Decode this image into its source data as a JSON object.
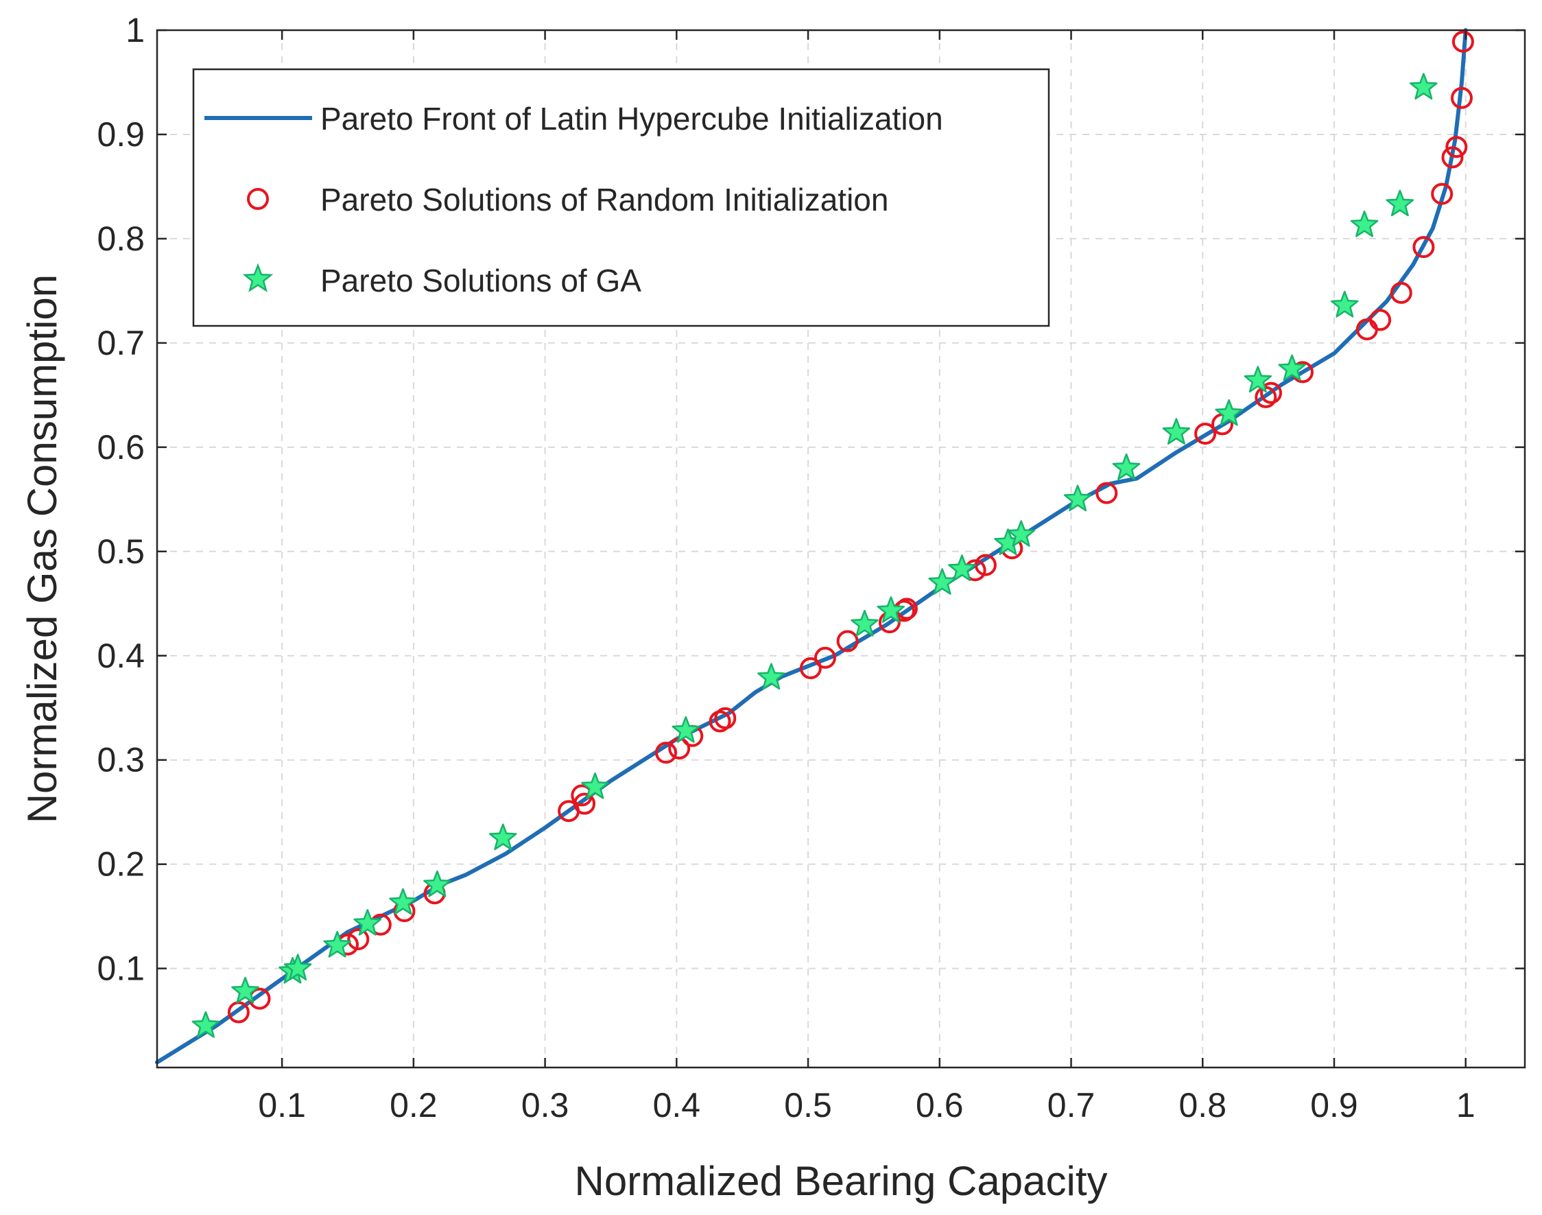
{
  "chart_data": {
    "type": "line",
    "title": "",
    "xlabel": "Normalized Bearing Capacity",
    "ylabel": "Normalized Gas Consumption",
    "xlim": [
      0.005,
      1.045
    ],
    "ylim": [
      0.005,
      1.0
    ],
    "xticks": [
      0.1,
      0.2,
      0.3,
      0.4,
      0.5,
      0.6,
      0.7,
      0.8,
      0.9,
      1.0
    ],
    "yticks": [
      0.1,
      0.2,
      0.3,
      0.4,
      0.5,
      0.6,
      0.7,
      0.8,
      0.9,
      1.0
    ],
    "xtick_labels": [
      "0.1",
      "0.2",
      "0.3",
      "0.4",
      "0.5",
      "0.6",
      "0.7",
      "0.8",
      "0.9",
      "1"
    ],
    "ytick_labels": [
      "0.1",
      "0.2",
      "0.3",
      "0.4",
      "0.5",
      "0.6",
      "0.7",
      "0.8",
      "0.9",
      "1"
    ],
    "grid": true,
    "legend_position": "top-left",
    "colors": {
      "front": "#1f6db5",
      "random": "#e8141e",
      "ga_fill": "#3cf08c",
      "ga_edge": "#17b36a",
      "axis": "#262626",
      "grid": "#d9d9d9"
    },
    "series": [
      {
        "name": "Pareto Front of Latin Hypercube Initialization",
        "marker": "line",
        "x": [
          0.005,
          0.05,
          0.1,
          0.15,
          0.2,
          0.22,
          0.24,
          0.27,
          0.3,
          0.35,
          0.4,
          0.44,
          0.46,
          0.48,
          0.52,
          0.56,
          0.6,
          0.65,
          0.7,
          0.73,
          0.75,
          0.78,
          0.82,
          0.86,
          0.88,
          0.9,
          0.92,
          0.94,
          0.96,
          0.975,
          0.985,
          0.992,
          0.997,
          1.0
        ],
        "y": [
          0.01,
          0.045,
          0.09,
          0.135,
          0.165,
          0.18,
          0.19,
          0.21,
          0.235,
          0.28,
          0.32,
          0.345,
          0.365,
          0.38,
          0.4,
          0.43,
          0.465,
          0.505,
          0.545,
          0.565,
          0.57,
          0.595,
          0.625,
          0.66,
          0.675,
          0.69,
          0.715,
          0.74,
          0.775,
          0.81,
          0.85,
          0.895,
          0.95,
          1.0
        ]
      },
      {
        "name": "Pareto Solutions of Random Initialization",
        "marker": "circle",
        "x": [
          0.067,
          0.083,
          0.15,
          0.158,
          0.175,
          0.193,
          0.216,
          0.318,
          0.33,
          0.328,
          0.392,
          0.402,
          0.412,
          0.433,
          0.437,
          0.502,
          0.513,
          0.53,
          0.562,
          0.573,
          0.575,
          0.627,
          0.635,
          0.655,
          0.727,
          0.802,
          0.815,
          0.848,
          0.852,
          0.876,
          0.925,
          0.935,
          0.951,
          0.968,
          0.982,
          0.99,
          0.993,
          0.997,
          0.998
        ],
        "y": [
          0.058,
          0.071,
          0.123,
          0.128,
          0.142,
          0.155,
          0.172,
          0.251,
          0.258,
          0.266,
          0.307,
          0.311,
          0.323,
          0.337,
          0.34,
          0.388,
          0.398,
          0.414,
          0.432,
          0.443,
          0.445,
          0.482,
          0.487,
          0.503,
          0.556,
          0.613,
          0.622,
          0.648,
          0.652,
          0.672,
          0.713,
          0.722,
          0.748,
          0.792,
          0.843,
          0.878,
          0.888,
          0.935,
          0.989
        ]
      },
      {
        "name": "Pareto Solutions of GA",
        "marker": "star",
        "x": [
          0.042,
          0.072,
          0.108,
          0.112,
          0.142,
          0.165,
          0.192,
          0.218,
          0.268,
          0.338,
          0.407,
          0.472,
          0.543,
          0.563,
          0.602,
          0.617,
          0.652,
          0.662,
          0.705,
          0.742,
          0.78,
          0.82,
          0.842,
          0.868,
          0.908,
          0.923,
          0.95,
          0.968
        ],
        "y": [
          0.045,
          0.078,
          0.097,
          0.1,
          0.122,
          0.143,
          0.163,
          0.18,
          0.225,
          0.274,
          0.328,
          0.379,
          0.43,
          0.443,
          0.47,
          0.483,
          0.508,
          0.516,
          0.55,
          0.58,
          0.614,
          0.632,
          0.664,
          0.675,
          0.736,
          0.813,
          0.833,
          0.945
        ]
      }
    ],
    "legend_entries": [
      "Pareto Front of Latin Hypercube Initialization",
      "Pareto Solutions of Random Initialization",
      "Pareto Solutions of GA"
    ]
  }
}
